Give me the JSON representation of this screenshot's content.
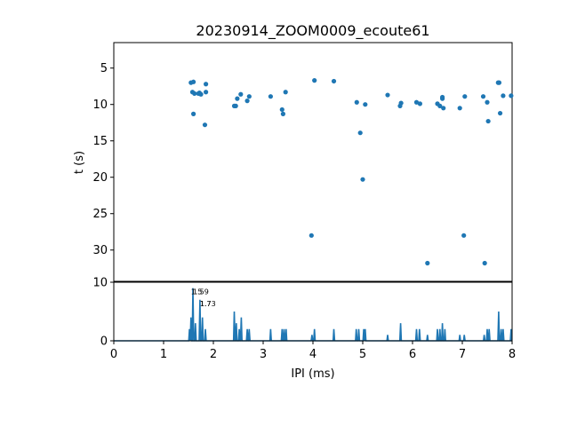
{
  "chart_data": [
    {
      "type": "scatter",
      "title": "20230914_ZOOM0009_ecoute61",
      "xlabel": "",
      "ylabel": "t (s)",
      "xlim": [
        0,
        8
      ],
      "ylim": [
        34.3,
        1.5
      ],
      "y_inverted": true,
      "yticks": [
        5,
        10,
        15,
        20,
        25,
        30
      ],
      "color": "#1f77b4",
      "points": [
        [
          1.55,
          7.0
        ],
        [
          1.6,
          6.9
        ],
        [
          1.58,
          8.3
        ],
        [
          1.62,
          8.5
        ],
        [
          1.7,
          8.5
        ],
        [
          1.75,
          8.6
        ],
        [
          1.72,
          8.4
        ],
        [
          1.85,
          8.3
        ],
        [
          1.85,
          7.2
        ],
        [
          1.6,
          11.3
        ],
        [
          1.83,
          12.8
        ],
        [
          2.42,
          10.2
        ],
        [
          2.45,
          10.2
        ],
        [
          2.48,
          9.2
        ],
        [
          2.55,
          8.6
        ],
        [
          2.68,
          9.5
        ],
        [
          2.72,
          8.9
        ],
        [
          3.15,
          8.9
        ],
        [
          3.38,
          10.7
        ],
        [
          3.4,
          11.3
        ],
        [
          3.45,
          8.3
        ],
        [
          3.97,
          28.0
        ],
        [
          4.03,
          6.7
        ],
        [
          4.42,
          6.8
        ],
        [
          4.88,
          9.7
        ],
        [
          4.95,
          13.9
        ],
        [
          5.0,
          20.3
        ],
        [
          5.05,
          10.0
        ],
        [
          5.5,
          8.7
        ],
        [
          5.75,
          10.2
        ],
        [
          5.77,
          9.8
        ],
        [
          6.08,
          9.7
        ],
        [
          6.15,
          9.9
        ],
        [
          6.3,
          31.8
        ],
        [
          6.5,
          9.9
        ],
        [
          6.55,
          10.2
        ],
        [
          6.6,
          9.0
        ],
        [
          6.6,
          9.2
        ],
        [
          6.62,
          10.5
        ],
        [
          6.95,
          10.5
        ],
        [
          7.03,
          28.0
        ],
        [
          7.05,
          8.9
        ],
        [
          7.42,
          8.9
        ],
        [
          7.45,
          31.8
        ],
        [
          7.5,
          9.7
        ],
        [
          7.52,
          12.3
        ],
        [
          7.72,
          7.0
        ],
        [
          7.74,
          7.0
        ],
        [
          7.76,
          11.2
        ],
        [
          7.82,
          8.8
        ],
        [
          7.98,
          8.8
        ]
      ]
    },
    {
      "type": "line",
      "title": "",
      "xlabel": "IPI (ms)",
      "ylabel": "",
      "xlim": [
        0,
        8
      ],
      "ylim": [
        0,
        10
      ],
      "xticks": [
        0,
        1,
        2,
        3,
        4,
        5,
        6,
        7,
        8
      ],
      "yticks": [
        0,
        10
      ],
      "color": "#1f77b4",
      "peaks": [
        [
          1.52,
          2
        ],
        [
          1.55,
          4
        ],
        [
          1.59,
          9
        ],
        [
          1.64,
          3
        ],
        [
          1.73,
          7
        ],
        [
          1.78,
          4
        ],
        [
          1.84,
          2
        ],
        [
          2.42,
          5
        ],
        [
          2.46,
          3
        ],
        [
          2.52,
          2
        ],
        [
          2.56,
          4
        ],
        [
          2.68,
          2
        ],
        [
          2.72,
          2
        ],
        [
          3.15,
          2
        ],
        [
          3.38,
          2
        ],
        [
          3.42,
          2
        ],
        [
          3.46,
          2
        ],
        [
          3.98,
          1
        ],
        [
          4.03,
          2
        ],
        [
          4.42,
          2
        ],
        [
          4.87,
          2
        ],
        [
          4.92,
          2
        ],
        [
          5.02,
          2
        ],
        [
          5.05,
          2
        ],
        [
          5.5,
          1
        ],
        [
          5.76,
          3
        ],
        [
          6.08,
          2
        ],
        [
          6.14,
          2
        ],
        [
          6.3,
          1
        ],
        [
          6.5,
          2
        ],
        [
          6.55,
          2
        ],
        [
          6.6,
          3
        ],
        [
          6.65,
          2
        ],
        [
          6.95,
          1
        ],
        [
          7.04,
          1
        ],
        [
          7.44,
          1
        ],
        [
          7.5,
          2
        ],
        [
          7.54,
          2
        ],
        [
          7.73,
          5
        ],
        [
          7.78,
          2
        ],
        [
          7.82,
          2
        ],
        [
          7.98,
          2
        ]
      ],
      "annotations": [
        {
          "x": 1.59,
          "y": 9,
          "text": "1.59"
        },
        {
          "x": 1.55,
          "y": 9,
          "text": "1.5"
        },
        {
          "x": 1.73,
          "y": 7,
          "text": "1.73"
        },
        {
          "x": 1.73,
          "y": 7,
          "text": "1.7"
        }
      ]
    }
  ]
}
